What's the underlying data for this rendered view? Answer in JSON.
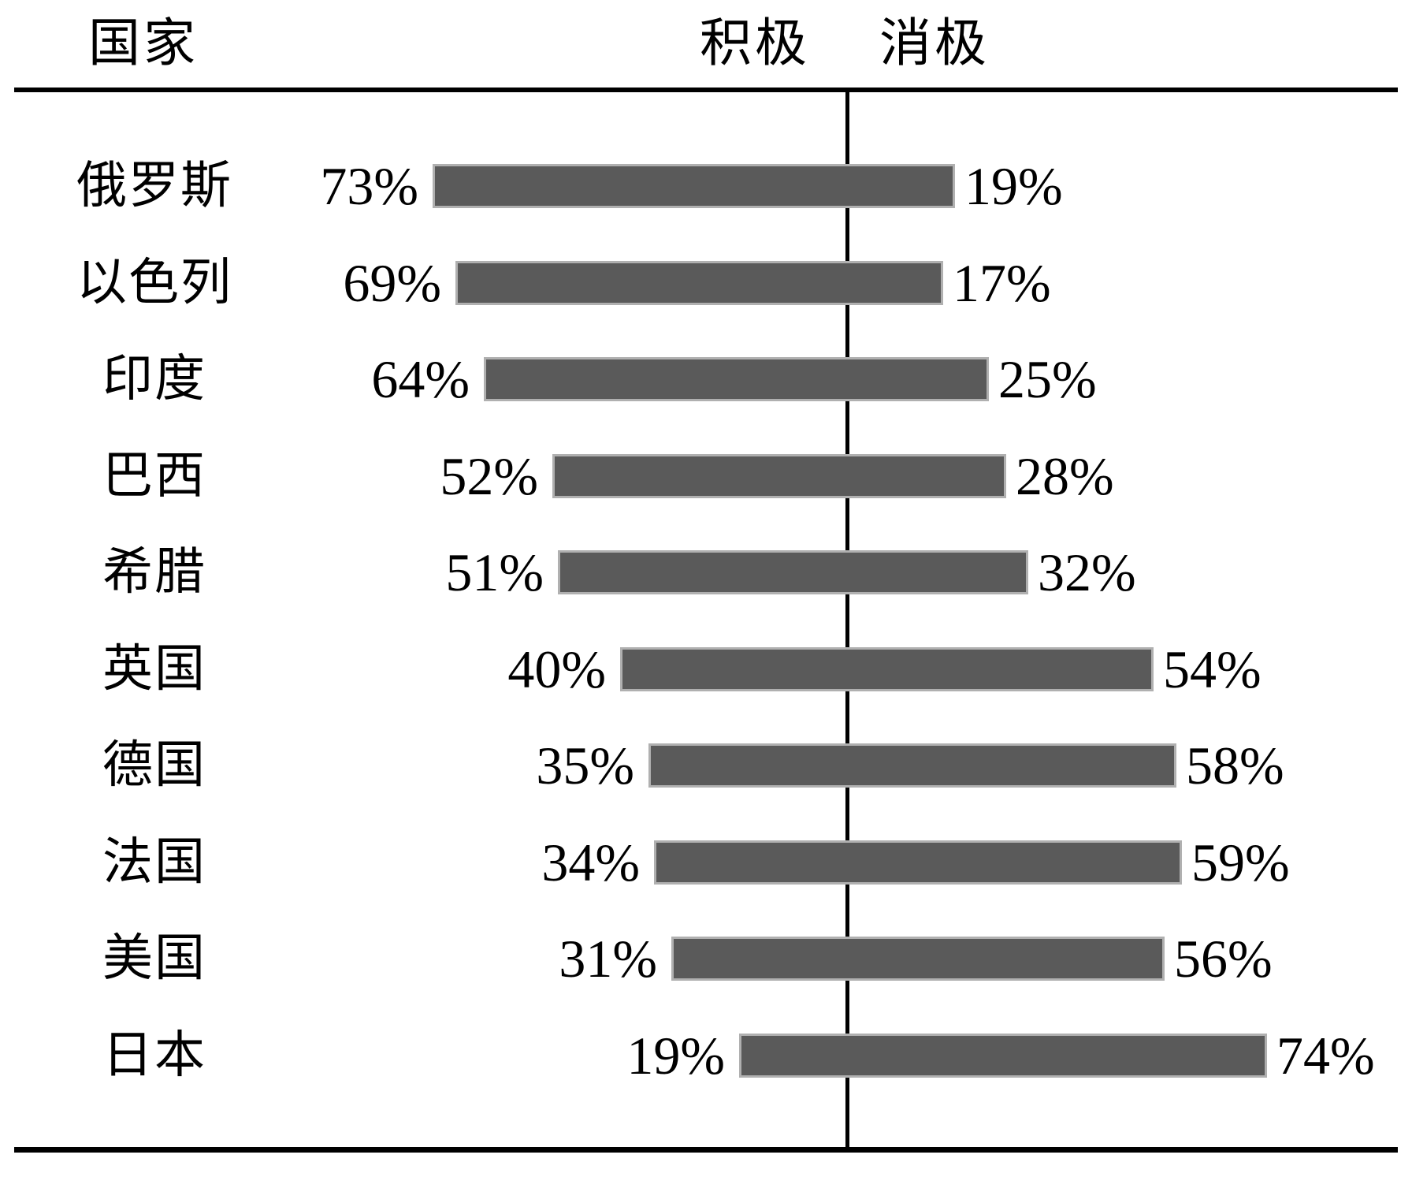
{
  "chart_data": {
    "type": "bar",
    "variant": "diverging-horizontal-bars",
    "title": "",
    "header": {
      "country_col": "国家",
      "positive_col": "积极",
      "negative_col": "消极"
    },
    "value_suffix": "%",
    "categories": [
      "俄罗斯",
      "以色列",
      "印度",
      "巴西",
      "希腊",
      "英国",
      "德国",
      "法国",
      "美国",
      "日本"
    ],
    "series": [
      {
        "name": "积极",
        "values": [
          73,
          69,
          64,
          52,
          51,
          40,
          35,
          34,
          31,
          19
        ]
      },
      {
        "name": "消极",
        "values": [
          19,
          17,
          25,
          28,
          32,
          54,
          58,
          59,
          56,
          74
        ]
      }
    ],
    "rows": [
      {
        "country": "俄罗斯",
        "positive": 73,
        "negative": 19
      },
      {
        "country": "以色列",
        "positive": 69,
        "negative": 17
      },
      {
        "country": "印度",
        "positive": 64,
        "negative": 25
      },
      {
        "country": "巴西",
        "positive": 52,
        "negative": 28
      },
      {
        "country": "希腊",
        "positive": 51,
        "negative": 32
      },
      {
        "country": "英国",
        "positive": 40,
        "negative": 54
      },
      {
        "country": "德国",
        "positive": 35,
        "negative": 58
      },
      {
        "country": "法国",
        "positive": 34,
        "negative": 59
      },
      {
        "country": "美国",
        "positive": 31,
        "negative": 56
      },
      {
        "country": "日本",
        "positive": 19,
        "negative": 74
      }
    ],
    "layout_hints": {
      "center_divider_line": true,
      "positive_side": "left",
      "negative_side": "right",
      "value_labels": "outside-bar-ends",
      "grid": "none"
    },
    "colors": {
      "bar_fill": "#5a5a5a",
      "bar_border": "#b0b0b0",
      "line": "#000000",
      "text": "#000000",
      "background": "#ffffff"
    }
  }
}
